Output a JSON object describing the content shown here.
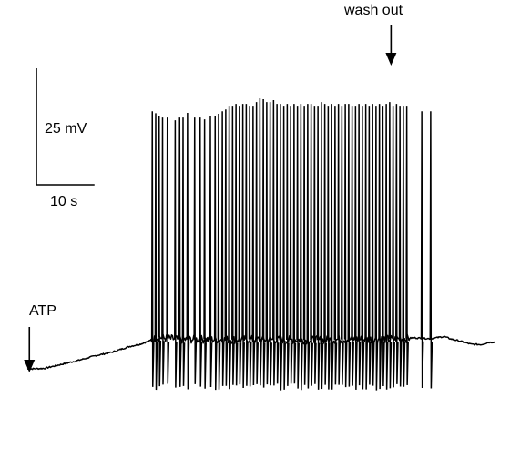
{
  "chart_data": {
    "type": "line",
    "title": "",
    "xlabel": "",
    "ylabel": "",
    "grid": false,
    "legend": "none",
    "color": "#000000",
    "scale_bars": {
      "voltage": {
        "value": 25,
        "unit": "mV",
        "label": "25 mV"
      },
      "time": {
        "value": 10,
        "unit": "s",
        "label": "10 s"
      }
    },
    "annotations": [
      {
        "id": "atp",
        "text": "ATP",
        "time_s": 0.6,
        "arrow": "down"
      },
      {
        "id": "washout",
        "text": "wash out",
        "time_s": 106.5,
        "arrow": "down"
      }
    ],
    "trace": {
      "duration_s": 137,
      "baseline": [
        [
          0,
          -7.7
        ],
        [
          5,
          -7.5
        ],
        [
          10,
          -6.2
        ],
        [
          15,
          -4.9
        ],
        [
          20,
          -3.4
        ],
        [
          25,
          -2.2
        ],
        [
          30,
          -0.4
        ],
        [
          33,
          0.3
        ],
        [
          35,
          1.1
        ],
        [
          37,
          1.8
        ],
        [
          38,
          2.6
        ],
        [
          41,
          2.2
        ],
        [
          45,
          1.8
        ],
        [
          50,
          1.9
        ],
        [
          55,
          1.8
        ],
        [
          60,
          1.8
        ],
        [
          65,
          1.9
        ],
        [
          70,
          1.8
        ],
        [
          75,
          1.8
        ],
        [
          80,
          1.7
        ],
        [
          85,
          1.7
        ],
        [
          90,
          1.8
        ],
        [
          95,
          1.9
        ],
        [
          100,
          1.9
        ],
        [
          105,
          2.0
        ],
        [
          110,
          2.0
        ],
        [
          113,
          2.4
        ],
        [
          118,
          2.1
        ],
        [
          122,
          2.8
        ],
        [
          124,
          2.0
        ],
        [
          126,
          1.5
        ],
        [
          130,
          0.3
        ],
        [
          133,
          0.2
        ],
        [
          135,
          0.9
        ],
        [
          137,
          1.0
        ]
      ],
      "spikes": [
        {
          "t": 36.6,
          "peak": 75.5
        },
        {
          "t": 37.6,
          "peak": 74.9
        },
        {
          "t": 38.6,
          "peak": 74.1
        },
        {
          "t": 39.6,
          "peak": 73.5
        },
        {
          "t": 41.0,
          "peak": 73.5
        },
        {
          "t": 43.3,
          "peak": 72.6
        },
        {
          "t": 44.6,
          "peak": 73.5
        },
        {
          "t": 45.6,
          "peak": 73.5
        },
        {
          "t": 46.9,
          "peak": 75.0
        },
        {
          "t": 49.0,
          "peak": 73.5
        },
        {
          "t": 50.6,
          "peak": 73.5
        },
        {
          "t": 51.9,
          "peak": 72.9
        },
        {
          "t": 53.6,
          "peak": 74.1
        },
        {
          "t": 55.0,
          "peak": 74.1
        },
        {
          "t": 56.0,
          "peak": 74.7
        },
        {
          "t": 57.1,
          "peak": 75.5
        },
        {
          "t": 58.1,
          "peak": 76.1
        },
        {
          "t": 59.1,
          "peak": 77.3
        },
        {
          "t": 60.1,
          "peak": 77.3
        },
        {
          "t": 61.1,
          "peak": 77.9
        },
        {
          "t": 62.1,
          "peak": 77.3
        },
        {
          "t": 63.1,
          "peak": 77.9
        },
        {
          "t": 64.1,
          "peak": 77.9
        },
        {
          "t": 65.1,
          "peak": 77.3
        },
        {
          "t": 66.1,
          "peak": 77.3
        },
        {
          "t": 67.1,
          "peak": 78.5
        },
        {
          "t": 68.1,
          "peak": 79.7
        },
        {
          "t": 69.1,
          "peak": 79.4
        },
        {
          "t": 70.1,
          "peak": 78.5
        },
        {
          "t": 71.1,
          "peak": 78.5
        },
        {
          "t": 72.1,
          "peak": 79.1
        },
        {
          "t": 73.1,
          "peak": 77.9
        },
        {
          "t": 74.1,
          "peak": 77.9
        },
        {
          "t": 75.1,
          "peak": 77.3
        },
        {
          "t": 76.1,
          "peak": 77.9
        },
        {
          "t": 77.1,
          "peak": 77.3
        },
        {
          "t": 78.1,
          "peak": 77.9
        },
        {
          "t": 79.1,
          "peak": 77.3
        },
        {
          "t": 80.1,
          "peak": 77.9
        },
        {
          "t": 81.1,
          "peak": 77.3
        },
        {
          "t": 82.1,
          "peak": 77.9
        },
        {
          "t": 83.1,
          "peak": 77.9
        },
        {
          "t": 84.1,
          "peak": 77.3
        },
        {
          "t": 85.1,
          "peak": 77.3
        },
        {
          "t": 86.1,
          "peak": 78.5
        },
        {
          "t": 87.1,
          "peak": 77.9
        },
        {
          "t": 88.1,
          "peak": 77.3
        },
        {
          "t": 89.1,
          "peak": 77.9
        },
        {
          "t": 90.1,
          "peak": 77.3
        },
        {
          "t": 91.1,
          "peak": 77.9
        },
        {
          "t": 92.1,
          "peak": 77.3
        },
        {
          "t": 93.1,
          "peak": 77.9
        },
        {
          "t": 94.1,
          "peak": 77.9
        },
        {
          "t": 95.1,
          "peak": 77.3
        },
        {
          "t": 96.1,
          "peak": 77.3
        },
        {
          "t": 97.1,
          "peak": 77.9
        },
        {
          "t": 98.1,
          "peak": 77.3
        },
        {
          "t": 99.1,
          "peak": 77.9
        },
        {
          "t": 100.1,
          "peak": 77.3
        },
        {
          "t": 101.1,
          "peak": 77.9
        },
        {
          "t": 102.1,
          "peak": 77.3
        },
        {
          "t": 103.1,
          "peak": 77.9
        },
        {
          "t": 104.1,
          "peak": 77.3
        },
        {
          "t": 105.1,
          "peak": 77.9
        },
        {
          "t": 106.1,
          "peak": 78.5
        },
        {
          "t": 107.1,
          "peak": 77.3
        },
        {
          "t": 108.1,
          "peak": 77.9
        },
        {
          "t": 109.1,
          "peak": 77.3
        },
        {
          "t": 110.1,
          "peak": 77.3
        },
        {
          "t": 111.1,
          "peak": 77.3
        },
        {
          "t": 115.5,
          "peak": 75.5
        },
        {
          "t": 118.1,
          "peak": 75.5
        }
      ]
    }
  }
}
